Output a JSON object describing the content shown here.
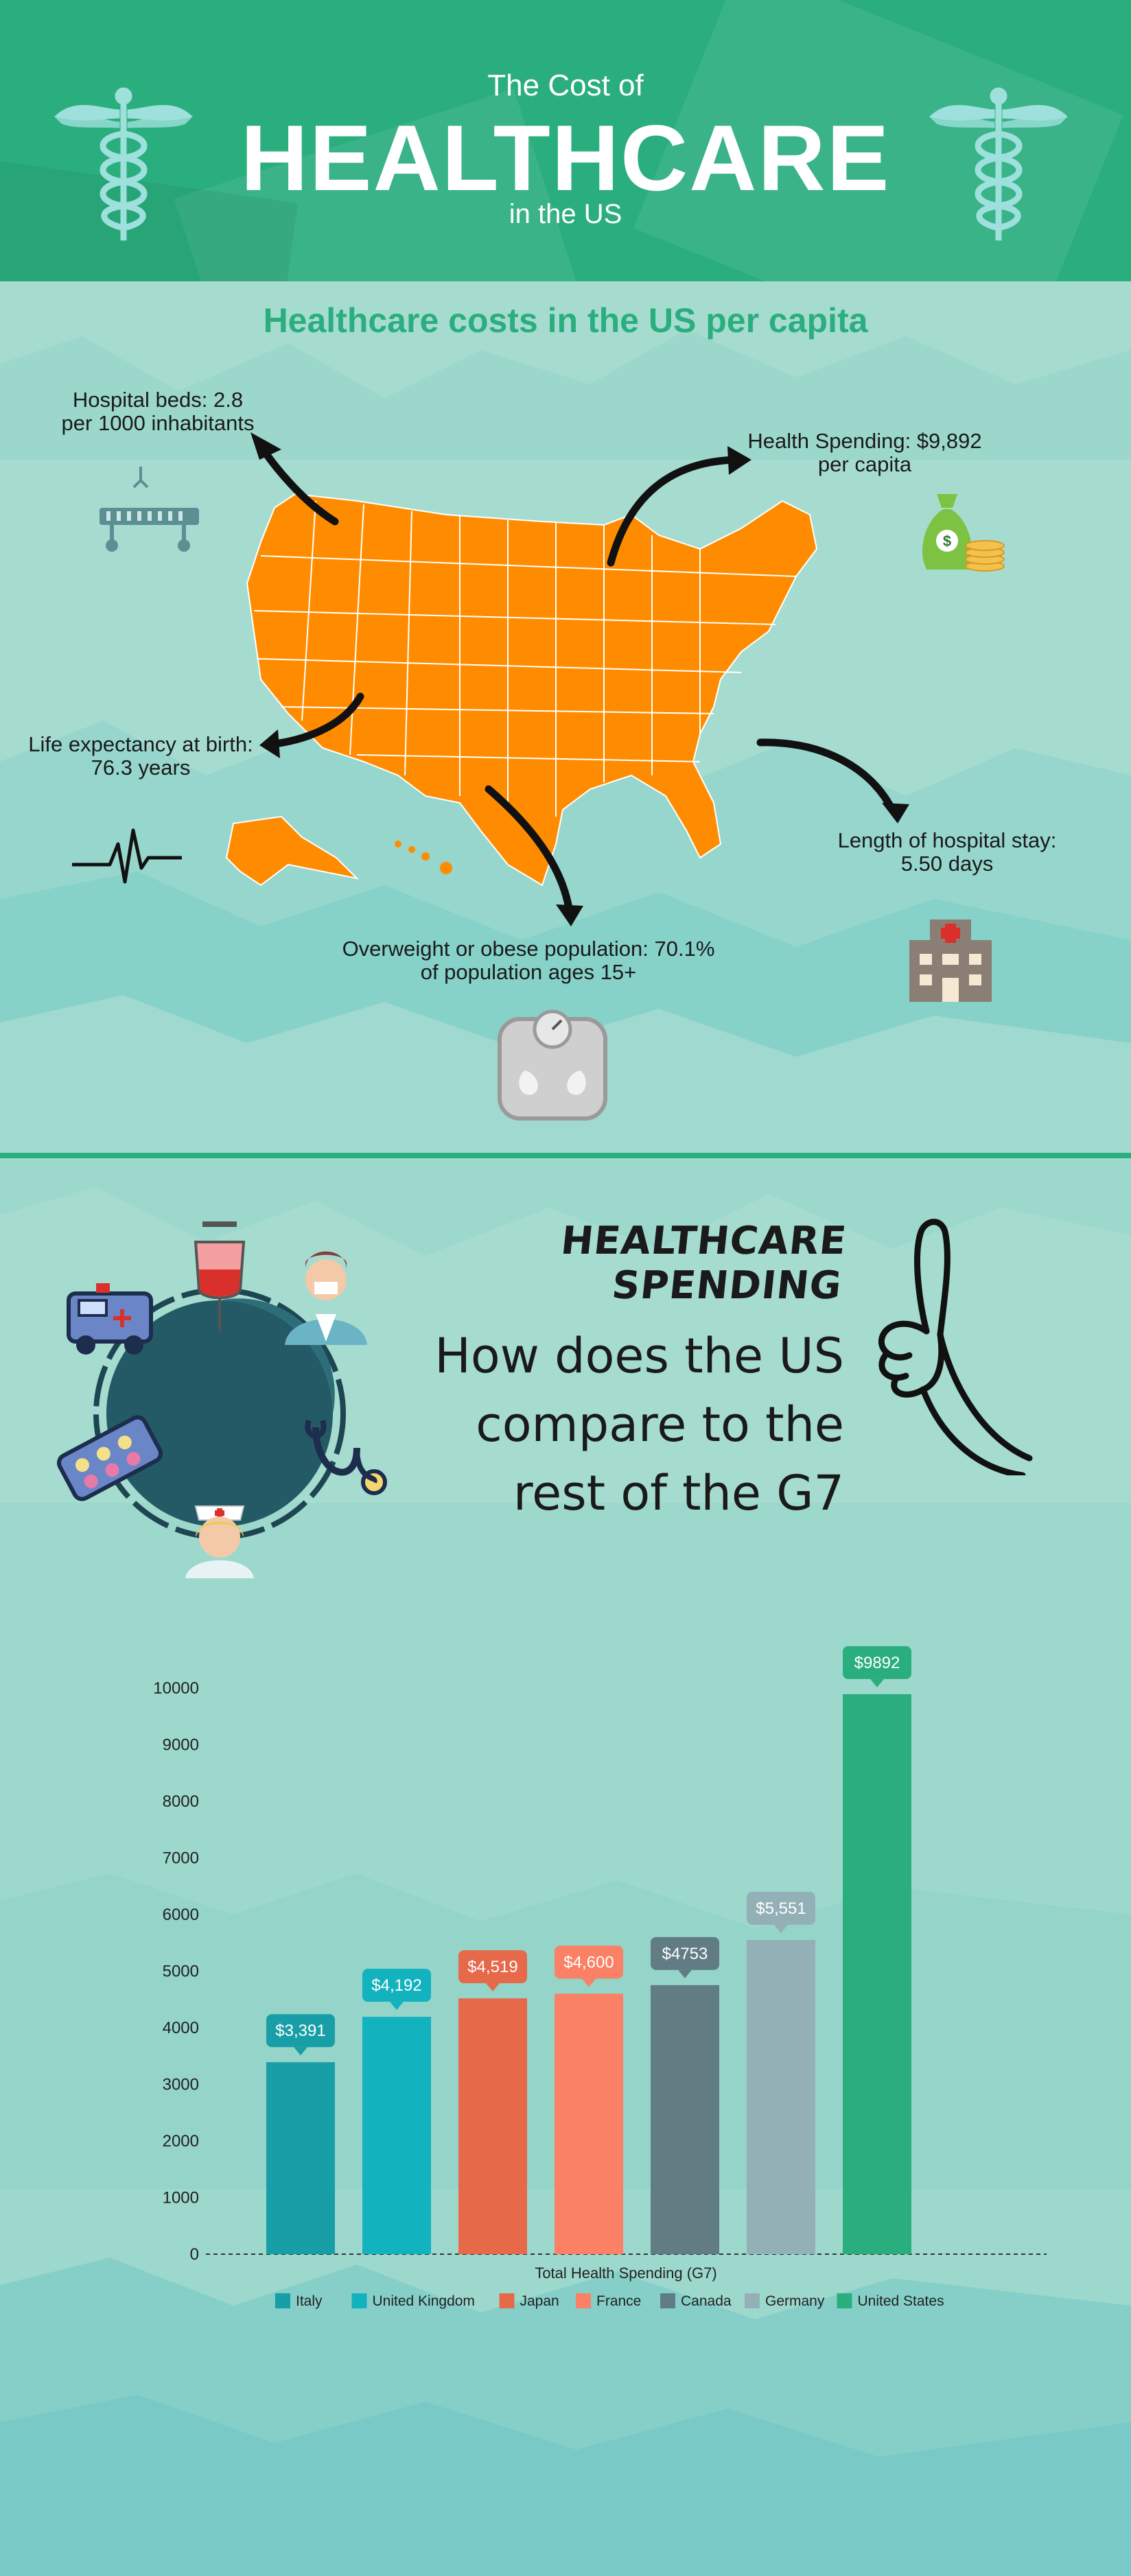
{
  "header": {
    "line1": "The Cost of",
    "title": "HEALTHCARE",
    "line3": "in the US"
  },
  "map_section": {
    "title": "Healthcare costs in the US per capita",
    "stats": {
      "beds_1": "Hospital beds: 2.8",
      "beds_2": "per 1000 inhabitants",
      "spend_1": "Health Spending: $9,892",
      "spend_2": "per capita",
      "life_1": "Life expectancy at birth:",
      "life_2": "76.3 years",
      "stay_1": "Length of hospital stay:",
      "stay_2": "5.50 days",
      "obese_1": "Overweight or obese population: 70.1%",
      "obese_2": "of population ages 15+"
    }
  },
  "spending_section": {
    "title": "HEALTHCARE SPENDING",
    "question_1": "How does the US",
    "question_2": "compare to the",
    "question_3": "rest of the G7"
  },
  "icons": [
    "caduceus-icon",
    "hospital-bed-icon",
    "money-bag-icon",
    "heartbeat-icon",
    "hospital-building-icon",
    "scale-icon",
    "ambulance-icon",
    "iv-bag-icon",
    "doctor-icon",
    "pills-icon",
    "nurse-icon",
    "stethoscope-icon",
    "pointing-hand-icon"
  ],
  "colors": {
    "header_green": "#2bae7e",
    "map_orange": "#ff8c00",
    "background": "#a6dcd0"
  },
  "chart_data": {
    "type": "bar",
    "xlabel": "Total Health Spending (G7)",
    "ylim": [
      0,
      10000
    ],
    "yticks": [
      "0",
      "1000",
      "2000",
      "3000",
      "4000",
      "5000",
      "6000",
      "7000",
      "8000",
      "9000",
      "10000"
    ],
    "categories": [
      "Italy",
      "United Kingdom",
      "Japan",
      "France",
      "Canada",
      "Germany",
      "United States"
    ],
    "values": [
      3391,
      4192,
      4519,
      4600,
      4753,
      5551,
      9892
    ],
    "labels": [
      "$3,391",
      "$4,192",
      "$4,519",
      "$4,600",
      "$4753",
      "$5,551",
      "$9892"
    ],
    "colors": [
      "#179ea6",
      "#13b2bf",
      "#e6694a",
      "#fa8066",
      "#617d83",
      "#94b0b7",
      "#2aae7e"
    ],
    "legend_position": "bottom",
    "grid": false
  }
}
